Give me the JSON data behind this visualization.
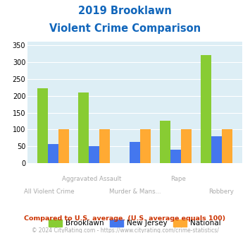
{
  "title_line1": "2019 Brooklawn",
  "title_line2": "Violent Crime Comparison",
  "categories": [
    "All Violent Crime",
    "Aggravated Assault",
    "Murder & Mans...",
    "Rape",
    "Robbery"
  ],
  "brooklawn": [
    222,
    210,
    0,
    125,
    322
  ],
  "new_jersey": [
    57,
    50,
    62,
    40,
    80
  ],
  "national": [
    100,
    100,
    100,
    100,
    100
  ],
  "colors": {
    "brooklawn": "#88cc33",
    "new_jersey": "#4477ee",
    "national": "#ffaa33"
  },
  "ylim": [
    0,
    360
  ],
  "yticks": [
    0,
    50,
    100,
    150,
    200,
    250,
    300,
    350
  ],
  "title_color": "#1166bb",
  "footnote1": "Compared to U.S. average. (U.S. average equals 100)",
  "footnote2": "© 2024 CityRating.com - https://www.cityrating.com/crime-statistics/",
  "footnote1_color": "#cc3300",
  "footnote2_color": "#aaaaaa",
  "url_color": "#4488cc",
  "bg_color": "#ddeef5",
  "legend_labels": [
    "Brooklawn",
    "New Jersey",
    "National"
  ]
}
